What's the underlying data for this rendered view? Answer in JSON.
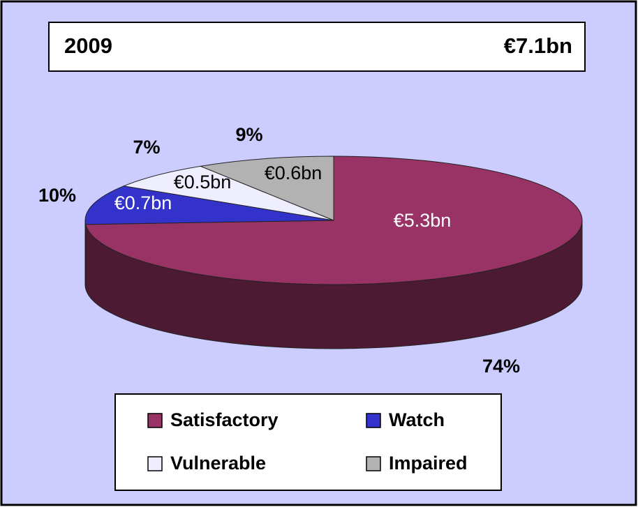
{
  "chart_data": {
    "type": "pie",
    "title": "2009",
    "subtitle": "€7.1bn",
    "categories": [
      "Satisfactory",
      "Watch",
      "Vulnerable",
      "Impaired"
    ],
    "values": [
      74,
      10,
      7,
      9
    ],
    "value_labels": [
      "74%",
      "10%",
      "7%",
      "9%"
    ],
    "amount_labels": [
      "€5.3bn",
      "€0.7bn",
      "€0.5bn",
      "€0.6bn"
    ],
    "colors": [
      "#993366",
      "#3333cc",
      "#eeeeff",
      "#b2b2b2"
    ],
    "legend": "bottom"
  }
}
